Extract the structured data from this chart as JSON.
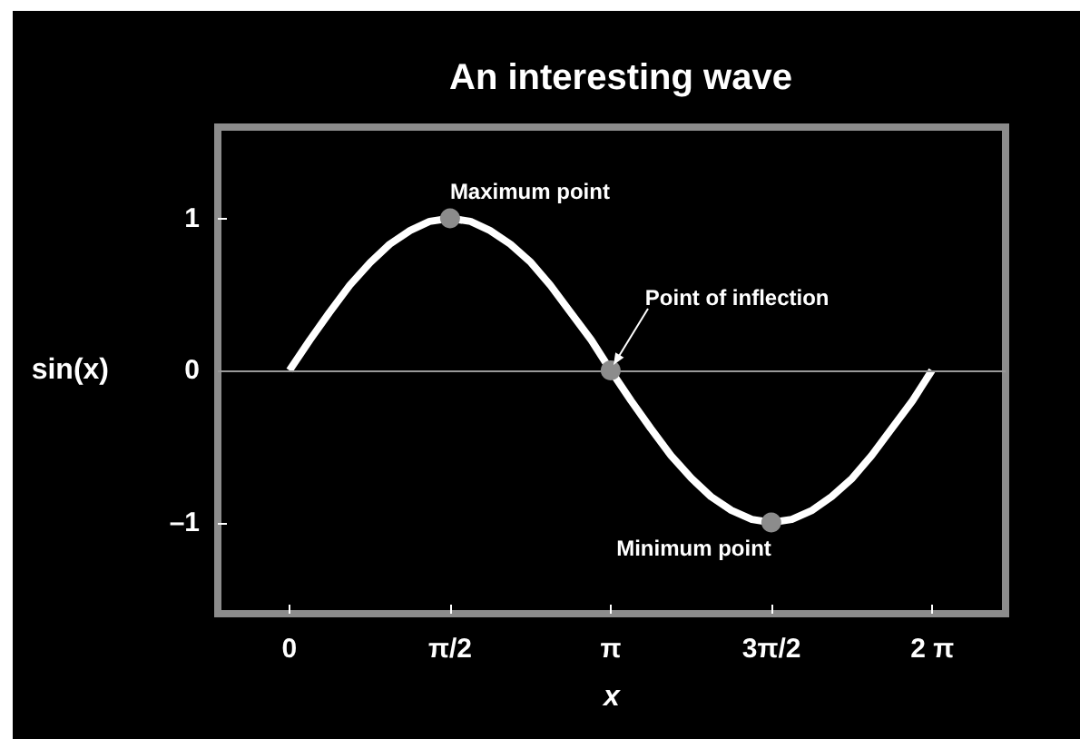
{
  "chart_data": {
    "type": "line",
    "title": "An interesting wave",
    "xlabel": "x",
    "ylabel": "sin(x)",
    "xlim": [
      -0.7,
      7.0
    ],
    "xticks": [
      0,
      {
        "value": 1.5708,
        "label": "π/2"
      },
      {
        "value": 3.1416,
        "label": "π"
      },
      {
        "value": 4.7124,
        "label": "3π/2"
      },
      {
        "value": 6.2832,
        "label": "2 π"
      }
    ],
    "ylim": [
      -1.6,
      1.6
    ],
    "yticks": [
      {
        "value": -1,
        "label": "–1"
      },
      0,
      1
    ],
    "series": [
      {
        "color": "#ffffff",
        "marker": "none",
        "line_style": "solid",
        "x": [
          0,
          0.2,
          0.39,
          0.59,
          0.79,
          0.98,
          1.18,
          1.37,
          1.57,
          1.77,
          1.96,
          2.16,
          2.36,
          2.55,
          2.75,
          2.95,
          3.14,
          3.34,
          3.53,
          3.73,
          3.93,
          4.12,
          4.32,
          4.52,
          4.71,
          4.91,
          5.11,
          5.3,
          5.5,
          5.69,
          5.89,
          6.09,
          6.28
        ],
        "values": [
          0,
          0.2,
          0.38,
          0.56,
          0.71,
          0.83,
          0.92,
          0.98,
          1,
          0.98,
          0.92,
          0.83,
          0.71,
          0.56,
          0.38,
          0.2,
          0,
          -0.2,
          -0.38,
          -0.56,
          -0.71,
          -0.83,
          -0.92,
          -0.98,
          -1,
          -0.98,
          -0.92,
          -0.83,
          -0.71,
          -0.56,
          -0.38,
          -0.2,
          0
        ]
      },
      {
        "type": "scatter",
        "color": "#8c8c8c",
        "marker": "circle",
        "x": [
          1.57,
          3.14,
          4.71
        ],
        "values": [
          1,
          0,
          -1
        ]
      }
    ],
    "ref_lines": [
      {
        "axis": "y",
        "value": 0,
        "color": "#999999"
      }
    ],
    "annotations": [
      {
        "text": "Maximum point",
        "x": 1.57,
        "y": 1
      },
      {
        "text": "Point of inflection",
        "x": 3.14,
        "y": 0
      },
      {
        "text": "Minimum point",
        "x": 4.71,
        "y": -1
      }
    ]
  }
}
